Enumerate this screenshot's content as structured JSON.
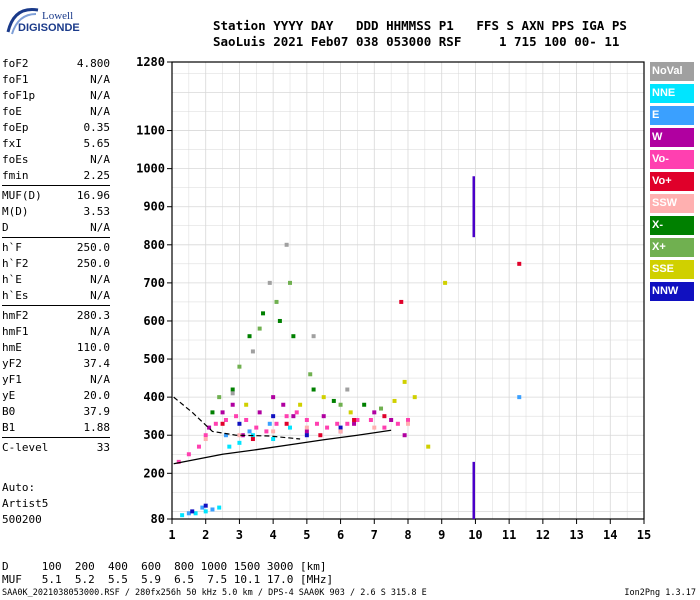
{
  "logo": {
    "line1": "Lowell",
    "line2": "DIGISONDE"
  },
  "header": {
    "row1": "Station YYYY DAY   DDD HHMMSS P1   FFS S AXN PPS IGA PS",
    "row2": "SaoLuis 2021 Feb07 038 053000 RSF     1 715 100 00- 11"
  },
  "params": [
    {
      "k": "foF2",
      "v": "4.800"
    },
    {
      "k": "foF1",
      "v": "N/A"
    },
    {
      "k": "foF1p",
      "v": "N/A"
    },
    {
      "k": "foE",
      "v": "N/A"
    },
    {
      "k": "foEp",
      "v": "0.35"
    },
    {
      "k": "fxI",
      "v": "5.65"
    },
    {
      "k": "foEs",
      "v": "N/A"
    },
    {
      "k": "fmin",
      "v": "2.25"
    },
    {
      "k": "MUF(D)",
      "v": "16.96"
    },
    {
      "k": "M(D)",
      "v": "3.53"
    },
    {
      "k": "D",
      "v": "N/A"
    },
    {
      "k": "h`F",
      "v": "250.0"
    },
    {
      "k": "h`F2",
      "v": "250.0"
    },
    {
      "k": "h`E",
      "v": "N/A"
    },
    {
      "k": "h`Es",
      "v": "N/A"
    },
    {
      "k": "hmF2",
      "v": "280.3"
    },
    {
      "k": "hmF1",
      "v": "N/A"
    },
    {
      "k": "hmE",
      "v": "110.0"
    },
    {
      "k": "yF2",
      "v": "37.4"
    },
    {
      "k": "yF1",
      "v": "N/A"
    },
    {
      "k": "yE",
      "v": "20.0"
    },
    {
      "k": "B0",
      "v": "37.9"
    },
    {
      "k": "B1",
      "v": "1.88"
    },
    {
      "k": "C-level",
      "v": "33"
    }
  ],
  "auto": {
    "line1": "Auto:",
    "line2": "Artist5",
    "line3": "500200"
  },
  "legend": [
    {
      "label": "NoVal",
      "color": "#a0a0a0"
    },
    {
      "label": "NNE",
      "color": "#00e5ff"
    },
    {
      "label": "E",
      "color": "#3aa0ff"
    },
    {
      "label": "W",
      "color": "#b000a0"
    },
    {
      "label": "Vo-",
      "color": "#ff40b0"
    },
    {
      "label": "Vo+",
      "color": "#e0002a"
    },
    {
      "label": "SSW",
      "color": "#ffb0b0"
    },
    {
      "label": "X-",
      "color": "#008000"
    },
    {
      "label": "X+",
      "color": "#70b050"
    },
    {
      "label": "SSE",
      "color": "#d0d000"
    },
    {
      "label": "NNW",
      "color": "#1010c0"
    }
  ],
  "dmuf": {
    "row1": "D     100  200  400  600  800 1000 1500 3000 [km]",
    "row2": "MUF   5.1  5.2  5.5  5.9  6.5  7.5 10.1 17.0 [MHz]"
  },
  "footer": {
    "left": "SAA0K_2021038053000.RSF / 280fx256h 50 kHz 5.0 km / DPS-4 SAA0K 903 / 2.6 S 315.8 E",
    "right": "Ion2Png 1.3.17"
  },
  "chart_data": {
    "type": "scatter",
    "title": "",
    "xlabel": "",
    "ylabel": "",
    "xlim": [
      1,
      15
    ],
    "ylim": [
      80,
      1280
    ],
    "xticks": [
      1,
      2,
      3,
      4,
      5,
      6,
      7,
      8,
      9,
      10,
      11,
      12,
      13,
      14,
      15
    ],
    "yticks": [
      80,
      200,
      300,
      400,
      500,
      600,
      700,
      800,
      900,
      1000,
      1100,
      1280
    ],
    "series": [
      {
        "name": "Vo-",
        "color": "#ff40b0",
        "points": [
          [
            1.2,
            230
          ],
          [
            1.5,
            250
          ],
          [
            1.8,
            270
          ],
          [
            2.0,
            300
          ],
          [
            2.3,
            330
          ],
          [
            2.6,
            340
          ],
          [
            2.9,
            350
          ],
          [
            3.2,
            340
          ],
          [
            3.5,
            320
          ],
          [
            3.8,
            310
          ],
          [
            4.1,
            330
          ],
          [
            4.4,
            350
          ],
          [
            4.7,
            360
          ],
          [
            5.0,
            340
          ],
          [
            5.3,
            330
          ],
          [
            5.6,
            320
          ],
          [
            5.9,
            330
          ],
          [
            6.2,
            330
          ],
          [
            6.5,
            340
          ],
          [
            6.9,
            340
          ],
          [
            7.3,
            320
          ],
          [
            7.7,
            330
          ],
          [
            8.0,
            340
          ]
        ]
      },
      {
        "name": "W",
        "color": "#b000a0",
        "points": [
          [
            2.1,
            320
          ],
          [
            2.5,
            360
          ],
          [
            2.8,
            380
          ],
          [
            3.1,
            300
          ],
          [
            3.6,
            360
          ],
          [
            4.0,
            400
          ],
          [
            4.3,
            380
          ],
          [
            4.6,
            350
          ],
          [
            5.0,
            310
          ],
          [
            5.5,
            350
          ],
          [
            6.0,
            310
          ],
          [
            6.4,
            330
          ],
          [
            7.0,
            360
          ],
          [
            7.5,
            340
          ],
          [
            7.9,
            300
          ]
        ]
      },
      {
        "name": "NNE",
        "color": "#00e5ff",
        "points": [
          [
            1.3,
            90
          ],
          [
            1.7,
            95
          ],
          [
            2.0,
            100
          ],
          [
            2.4,
            110
          ],
          [
            2.7,
            270
          ],
          [
            3.0,
            280
          ],
          [
            3.4,
            300
          ],
          [
            4.0,
            290
          ],
          [
            4.5,
            320
          ]
        ]
      },
      {
        "name": "E",
        "color": "#3aa0ff",
        "points": [
          [
            1.5,
            95
          ],
          [
            1.9,
            110
          ],
          [
            2.2,
            105
          ],
          [
            2.6,
            300
          ],
          [
            3.3,
            310
          ],
          [
            3.9,
            330
          ],
          [
            11.3,
            400
          ]
        ]
      },
      {
        "name": "X-",
        "color": "#008000",
        "points": [
          [
            2.2,
            360
          ],
          [
            2.8,
            420
          ],
          [
            3.3,
            560
          ],
          [
            3.7,
            620
          ],
          [
            4.2,
            600
          ],
          [
            4.6,
            560
          ],
          [
            5.2,
            420
          ],
          [
            5.8,
            390
          ],
          [
            6.7,
            380
          ]
        ]
      },
      {
        "name": "X+",
        "color": "#70b050",
        "points": [
          [
            2.4,
            400
          ],
          [
            3.0,
            480
          ],
          [
            3.6,
            580
          ],
          [
            4.1,
            650
          ],
          [
            4.5,
            700
          ],
          [
            5.1,
            460
          ],
          [
            6.0,
            380
          ],
          [
            7.2,
            370
          ]
        ]
      },
      {
        "name": "SSE",
        "color": "#d0d000",
        "points": [
          [
            3.2,
            380
          ],
          [
            4.8,
            380
          ],
          [
            5.5,
            400
          ],
          [
            6.3,
            360
          ],
          [
            7.6,
            390
          ],
          [
            7.9,
            440
          ],
          [
            8.2,
            400
          ],
          [
            8.6,
            270
          ],
          [
            9.1,
            700
          ]
        ]
      },
      {
        "name": "NNW",
        "color": "#1010c0",
        "points": [
          [
            1.6,
            100
          ],
          [
            2.0,
            115
          ],
          [
            3.0,
            330
          ],
          [
            4.0,
            350
          ],
          [
            5.0,
            300
          ],
          [
            6.0,
            320
          ]
        ]
      },
      {
        "name": "Vo+",
        "color": "#e0002a",
        "points": [
          [
            2.5,
            330
          ],
          [
            3.4,
            290
          ],
          [
            4.4,
            330
          ],
          [
            5.4,
            300
          ],
          [
            6.4,
            340
          ],
          [
            7.3,
            350
          ],
          [
            11.3,
            750
          ],
          [
            7.8,
            650
          ]
        ]
      },
      {
        "name": "SSW",
        "color": "#ffb0b0",
        "points": [
          [
            2.0,
            290
          ],
          [
            3.0,
            300
          ],
          [
            4.0,
            310
          ],
          [
            5.0,
            320
          ],
          [
            6.0,
            310
          ],
          [
            7.0,
            320
          ],
          [
            8.0,
            330
          ]
        ]
      },
      {
        "name": "NoVal",
        "color": "#a0a0a0",
        "points": [
          [
            2.8,
            410
          ],
          [
            3.4,
            520
          ],
          [
            3.9,
            700
          ],
          [
            4.4,
            800
          ],
          [
            5.2,
            560
          ],
          [
            6.2,
            420
          ]
        ]
      }
    ],
    "vertical_marker": {
      "x": 9.95,
      "segments": [
        [
          820,
          980
        ],
        [
          80,
          230
        ]
      ],
      "color": "#4a00c8"
    },
    "trace_line": {
      "color": "#000000",
      "points": [
        [
          1.05,
          225
        ],
        [
          2.5,
          250
        ],
        [
          3.5,
          262
        ],
        [
          4.5,
          275
        ],
        [
          5.5,
          288
        ],
        [
          6.5,
          300
        ],
        [
          7.5,
          313
        ]
      ]
    },
    "dashed_line": {
      "color": "#000000",
      "points": [
        [
          1.05,
          400
        ],
        [
          1.6,
          360
        ],
        [
          2.2,
          310
        ],
        [
          2.9,
          300
        ],
        [
          3.9,
          298
        ],
        [
          4.8,
          290
        ]
      ]
    }
  }
}
